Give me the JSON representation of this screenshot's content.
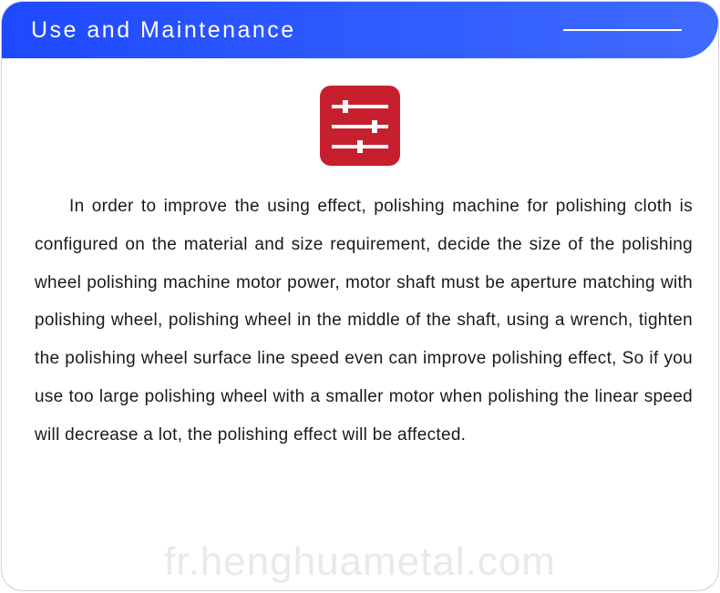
{
  "header": {
    "title": "Use and Maintenance",
    "title_color": "#ffffff",
    "bg_gradient_start": "#1f49ff",
    "bg_gradient_end": "#3f6bff",
    "title_fontsize": 25,
    "letter_spacing": 2.5
  },
  "icon": {
    "name": "settings-sliders",
    "bg_color": "#c6202e",
    "fg_color": "#ffffff",
    "size": 88,
    "border_radius": 12,
    "slider_positions": [
      12,
      44,
      28
    ]
  },
  "body": {
    "text": "In order to improve the using effect, polishing machine for polishing cloth is configured on the material and size requirement, decide the size of the polishing wheel polishing machine motor power, motor shaft must be aperture matching with polishing wheel, polishing wheel in the middle of the shaft, using a wrench, tighten the polishing wheel surface line speed even can improve polishing effect, So if you use too large polishing wheel with a smaller motor when polishing the linear speed will decrease a lot, the polishing effect will be affected.",
    "text_color": "#1a1a1a",
    "fontsize": 19,
    "line_height": 2.2,
    "text_indent_em": 2
  },
  "watermark": {
    "text": "fr.henghuametal.com",
    "color": "rgba(120,120,120,0.16)",
    "fontsize": 44
  },
  "card": {
    "border_color": "#d0d0d0",
    "border_radius": 24,
    "bg_color": "#ffffff"
  }
}
